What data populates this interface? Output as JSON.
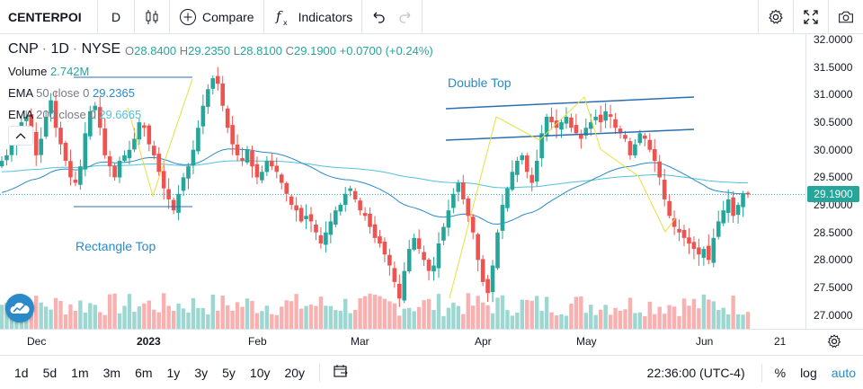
{
  "toolbar": {
    "symbol": "CENTERPOI",
    "interval": "D",
    "compare_label": "Compare",
    "indicators_label": "Indicators"
  },
  "legend": {
    "ticker": "CNP",
    "interval": "1D",
    "exchange": "NYSE",
    "open_label": "O",
    "open": "28.8400",
    "high_label": "H",
    "high": "29.2350",
    "low_label": "L",
    "low": "28.8100",
    "close_label": "C",
    "close": "29.1900",
    "change": "+0.0700 (+0.24%)",
    "volume_label": "Volume",
    "volume": "2.742M",
    "ema50_label": "EMA",
    "ema50_params": "50 close 0",
    "ema50_value": "29.2365",
    "ema200_label": "EMA",
    "ema200_params": "200 close 0",
    "ema200_value": "29.6665"
  },
  "annotations": {
    "double_top": "Double Top",
    "rectangle_top": "Rectangle Top"
  },
  "price_axis": [
    "32.0000",
    "31.5000",
    "31.0000",
    "30.5000",
    "30.0000",
    "29.5000",
    "29.0000",
    "28.5000",
    "28.0000",
    "27.5000",
    "27.0000"
  ],
  "last_price_tag": "29.1900",
  "time_axis": [
    "Dec",
    "2023",
    "Feb",
    "Mar",
    "Apr",
    "May",
    "Jun",
    "21"
  ],
  "ranges": [
    "1d",
    "5d",
    "1m",
    "3m",
    "6m",
    "1y",
    "3y",
    "5y",
    "10y",
    "20y"
  ],
  "clock": "22:36:00 (UTC-4)",
  "bottom_right": {
    "percent": "%",
    "log": "log",
    "auto": "auto"
  },
  "colors": {
    "up": "#26a69a",
    "down": "#ef5350",
    "ema50": "#2a8ac8",
    "ema200": "#4fc3d9",
    "accent": "#2a8ac8"
  },
  "chart_data": {
    "type": "candlestick",
    "ylim": [
      26.75,
      32.1
    ],
    "y_ticks": [
      27.0,
      27.5,
      28.0,
      28.5,
      29.0,
      29.5,
      30.0,
      30.5,
      31.0,
      31.5,
      32.0
    ],
    "close_series": [
      29.8,
      29.9,
      30.1,
      30.3,
      30.5,
      30.6,
      30.3,
      29.9,
      30.2,
      30.6,
      30.9,
      30.4,
      30.1,
      29.8,
      29.5,
      29.4,
      29.7,
      30.3,
      30.7,
      30.8,
      30.4,
      29.9,
      29.7,
      29.5,
      29.8,
      29.9,
      30.0,
      30.2,
      30.5,
      30.4,
      30.1,
      29.9,
      29.6,
      29.3,
      29.1,
      28.9,
      29.2,
      29.5,
      29.7,
      30.0,
      30.4,
      30.8,
      31.1,
      31.3,
      31.2,
      30.8,
      30.4,
      30.1,
      29.9,
      29.8,
      30.0,
      29.7,
      29.5,
      29.6,
      29.8,
      29.7,
      29.6,
      29.4,
      29.2,
      29.0,
      28.9,
      28.7,
      28.8,
      28.7,
      28.5,
      28.3,
      28.5,
      28.7,
      28.9,
      29.0,
      29.2,
      29.3,
      29.1,
      28.9,
      28.8,
      28.6,
      28.4,
      28.3,
      28.1,
      27.9,
      27.6,
      27.3,
      27.8,
      28.2,
      28.4,
      28.2,
      28.0,
      27.8,
      27.9,
      28.3,
      28.6,
      28.9,
      29.2,
      29.4,
      29.1,
      28.8,
      28.5,
      28.0,
      27.6,
      27.4,
      27.9,
      28.5,
      29.0,
      29.3,
      29.6,
      29.8,
      29.9,
      29.6,
      29.4,
      29.8,
      30.3,
      30.6,
      30.5,
      30.4,
      30.5,
      30.6,
      30.4,
      30.3,
      30.2,
      30.4,
      30.5,
      30.6,
      30.5,
      30.7,
      30.6,
      30.4,
      30.3,
      30.2,
      29.9,
      30.1,
      30.3,
      30.2,
      30.0,
      29.8,
      29.5,
      29.1,
      28.8,
      28.6,
      28.5,
      28.4,
      28.3,
      28.2,
      28.1,
      28.2,
      28.0,
      28.4,
      28.7,
      28.9,
      29.1,
      28.8,
      29.0,
      29.2,
      29.19
    ]
  }
}
